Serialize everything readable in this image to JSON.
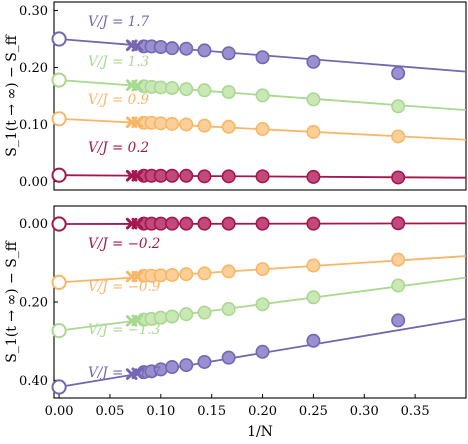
{
  "chart_data": [
    {
      "type": "scatter",
      "panel": "top",
      "xlabel": "",
      "ylabel": "S_1(t → ∞) − S_ff",
      "ylim": [
        -0.015,
        0.315
      ],
      "xlim": [
        -0.005,
        0.4
      ],
      "ytick_labels": [
        "0.00",
        "0.10",
        "0.20",
        "0.30"
      ],
      "yticks": [
        0.0,
        0.1,
        0.2,
        0.3
      ],
      "xtick_labels": [],
      "series": [
        {
          "name": "V/J = 1.7",
          "color": "#7466b0",
          "fill": "#9a8fd0",
          "fit": [
            0.25,
            -0.143
          ],
          "intercept_value": 0.25,
          "cross_x": [
            0.0714,
            0.0769
          ],
          "cross_y": [
            0.239,
            0.238
          ],
          "points_x": [
            0.0833,
            0.0909,
            0.1,
            0.1111,
            0.125,
            0.1429,
            0.1667,
            0.2,
            0.25,
            0.3333
          ],
          "points_y": [
            0.237,
            0.237,
            0.236,
            0.234,
            0.233,
            0.23,
            0.225,
            0.218,
            0.21,
            0.19
          ]
        },
        {
          "name": "V/J = 1.3",
          "color": "#a9d890",
          "fill": "#c9e8b6",
          "fit": [
            0.178,
            -0.132
          ],
          "intercept_value": 0.178,
          "cross_x": [
            0.0714,
            0.0769
          ],
          "cross_y": [
            0.169,
            0.168
          ],
          "points_x": [
            0.0833,
            0.0909,
            0.1,
            0.1111,
            0.125,
            0.1429,
            0.1667,
            0.2,
            0.25,
            0.3333
          ],
          "points_y": [
            0.167,
            0.166,
            0.165,
            0.164,
            0.162,
            0.16,
            0.157,
            0.151,
            0.144,
            0.132
          ]
        },
        {
          "name": "V/J = 0.9",
          "color": "#f7b76a",
          "fill": "#fbcf97",
          "fit": [
            0.11,
            -0.092
          ],
          "intercept_value": 0.11,
          "cross_x": [
            0.0714,
            0.0769
          ],
          "cross_y": [
            0.104,
            0.104
          ],
          "points_x": [
            0.0833,
            0.0909,
            0.1,
            0.1111,
            0.125,
            0.1429,
            0.1667,
            0.2,
            0.25,
            0.3333
          ],
          "points_y": [
            0.103,
            0.103,
            0.102,
            0.101,
            0.1,
            0.098,
            0.096,
            0.092,
            0.087,
            0.079
          ]
        },
        {
          "name": "V/J = 0.2",
          "color": "#a3174f",
          "fill": "#c24a7a",
          "fit": [
            0.011,
            -0.011
          ],
          "intercept_value": 0.011,
          "cross_x": [
            0.0714,
            0.0769
          ],
          "cross_y": [
            0.01,
            0.01
          ],
          "points_x": [
            0.0833,
            0.0909,
            0.1,
            0.1111,
            0.125,
            0.1429,
            0.1667,
            0.2,
            0.25,
            0.3333
          ],
          "points_y": [
            0.01,
            0.01,
            0.01,
            0.01,
            0.01,
            0.009,
            0.009,
            0.009,
            0.008,
            0.007
          ]
        }
      ]
    },
    {
      "type": "scatter",
      "panel": "bottom",
      "xlabel": "1/N",
      "ylabel": "S_1(t → ∞) − S_ff",
      "ylim": [
        0.445,
        -0.045
      ],
      "xlim": [
        -0.005,
        0.4
      ],
      "ytick_labels": [
        "0.00",
        "0.20",
        "0.40"
      ],
      "yticks": [
        0.0,
        0.2,
        0.4
      ],
      "xtick_labels": [
        "0.00",
        "0.05",
        "0.10",
        "0.15",
        "0.20",
        "0.25",
        "0.30",
        "0.35"
      ],
      "xticks": [
        0.0,
        0.05,
        0.1,
        0.15,
        0.2,
        0.25,
        0.3,
        0.35
      ],
      "series": [
        {
          "name": "V/J = −0.2",
          "color": "#a3174f",
          "fill": "#c24a7a",
          "fit": [
            0.001,
            -0.004
          ],
          "intercept_value": 0.001,
          "cross_x": [
            0.0714,
            0.0769
          ],
          "cross_y": [
            0.0,
            0.0
          ],
          "points_x": [
            0.0833,
            0.0909,
            0.1,
            0.1111,
            0.125,
            0.1429,
            0.1667,
            0.2,
            0.25,
            0.3333
          ],
          "points_y": [
            0.0,
            0.0,
            0.0,
            0.0,
            0.0,
            0.0,
            0.0,
            0.0,
            0.0,
            -0.001
          ]
        },
        {
          "name": "V/J = −0.9",
          "color": "#f7b76a",
          "fill": "#fbcf97",
          "fit": [
            0.15,
            -0.168
          ],
          "intercept_value": 0.15,
          "cross_x": [
            0.0714,
            0.0769
          ],
          "cross_y": [
            0.135,
            0.135
          ],
          "points_x": [
            0.0833,
            0.0909,
            0.1,
            0.1111,
            0.125,
            0.1429,
            0.1667,
            0.2,
            0.25,
            0.3333
          ],
          "points_y": [
            0.133,
            0.133,
            0.132,
            0.131,
            0.129,
            0.127,
            0.122,
            0.116,
            0.107,
            0.092
          ]
        },
        {
          "name": "V/J = −1.3",
          "color": "#a9d890",
          "fill": "#c9e8b6",
          "fit": [
            0.273,
            -0.338
          ],
          "intercept_value": 0.273,
          "cross_x": [
            0.0714,
            0.0769
          ],
          "cross_y": [
            0.248,
            0.247
          ],
          "points_x": [
            0.0833,
            0.0909,
            0.1,
            0.1111,
            0.125,
            0.1429,
            0.1667,
            0.2,
            0.25,
            0.3333
          ],
          "points_y": [
            0.245,
            0.243,
            0.24,
            0.237,
            0.231,
            0.227,
            0.218,
            0.206,
            0.188,
            0.158
          ]
        },
        {
          "name": "V/J = −1.7",
          "color": "#7466b0",
          "fill": "#9a8fd0",
          "fit": [
            0.417,
            -0.435
          ],
          "intercept_value": 0.417,
          "cross_x": [
            0.0714,
            0.0769
          ],
          "cross_y": [
            0.384,
            0.382
          ],
          "points_x": [
            0.0833,
            0.0909,
            0.1,
            0.1111,
            0.125,
            0.1429,
            0.1667,
            0.2,
            0.25,
            0.3333
          ],
          "points_y": [
            0.379,
            0.377,
            0.372,
            0.366,
            0.361,
            0.353,
            0.342,
            0.327,
            0.299,
            0.247
          ]
        }
      ]
    }
  ]
}
